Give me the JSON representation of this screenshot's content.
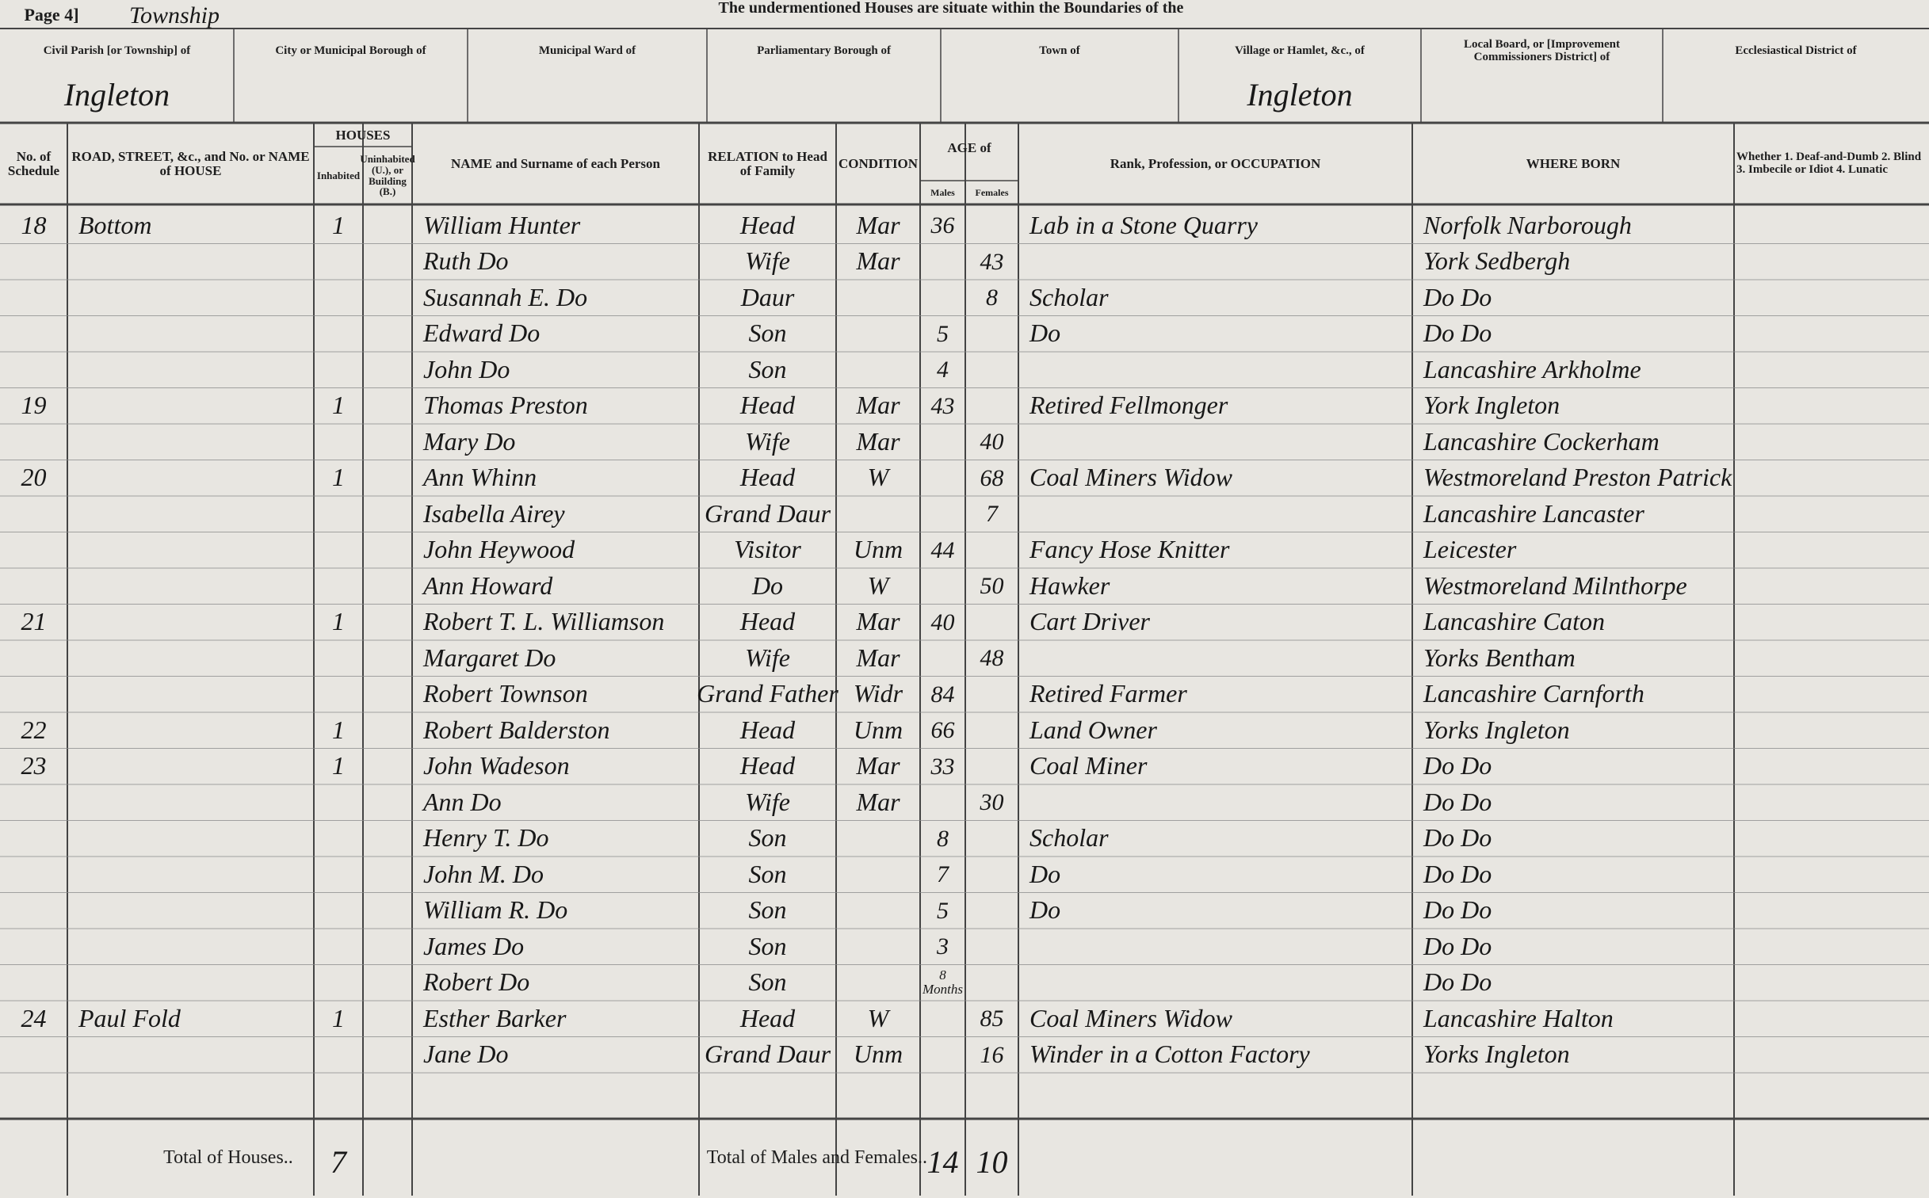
{
  "header": {
    "page": "Page 4]",
    "title": "The undermentioned Houses are situate within the Boundaries of the",
    "annotation": "Township",
    "boundaries": [
      {
        "label": "Civil Parish [or Township] of",
        "value": "Ingleton"
      },
      {
        "label": "City or Municipal Borough of"
      },
      {
        "label": "Municipal Ward of"
      },
      {
        "label": "Parliamentary Borough of"
      },
      {
        "label": "Town of"
      },
      {
        "label": "Village or Hamlet, &c., of",
        "value": "Ingleton"
      },
      {
        "label": "Local Board, or [Improvement Commissioners District] of"
      },
      {
        "label": "Ecclesiastical District of"
      }
    ]
  },
  "table": {
    "headers": {
      "schedule": "No. of Schedule",
      "address": "ROAD, STREET, &c., and No. or NAME of HOUSE",
      "houses": "HOUSES",
      "inhabited": "Inhabited",
      "uninhabited": "Uninhabited (U.), or Building (B.)",
      "name": "NAME and Surname of each Person",
      "relation": "RELATION to Head of Family",
      "condition": "CONDITION",
      "age": "AGE of",
      "males": "Males",
      "females": "Females",
      "occupation": "Rank, Profession, or OCCUPATION",
      "born": "WHERE BORN",
      "infirmity": "Whether 1. Deaf-and-Dumb 2. Blind 3. Imbecile or Idiot 4. Lunatic"
    },
    "rows": [
      {
        "schedule": "18",
        "address": "Bottom",
        "inhabited": "1",
        "name": "William Hunter",
        "relation": "Head",
        "condition": "Mar",
        "males": 36,
        "occupation": "Lab in a Stone Quarry",
        "born": "Norfolk Narborough"
      },
      {
        "name": "Ruth Do",
        "relation": "Wife",
        "condition": "Mar",
        "females": 43,
        "born": "York Sedbergh"
      },
      {
        "name": "Susannah E. Do",
        "relation": "Daur",
        "females": 8,
        "occupation": "Scholar",
        "born": "Do Do"
      },
      {
        "name": "Edward Do",
        "relation": "Son",
        "males": 5,
        "occupation": "Do",
        "born": "Do Do"
      },
      {
        "name": "John Do",
        "relation": "Son",
        "males": 4,
        "born": "Lancashire Arkholme"
      },
      {
        "schedule": "19",
        "inhabited": "1",
        "name": "Thomas Preston",
        "relation": "Head",
        "condition": "Mar",
        "males": 43,
        "occupation": "Retired Fellmonger",
        "born": "York Ingleton"
      },
      {
        "name": "Mary Do",
        "relation": "Wife",
        "condition": "Mar",
        "females": 40,
        "born": "Lancashire Cockerham"
      },
      {
        "schedule": "20",
        "inhabited": "1",
        "name": "Ann Whinn",
        "relation": "Head",
        "condition": "W",
        "females": 68,
        "occupation": "Coal Miners Widow",
        "born": "Westmoreland Preston Patrick"
      },
      {
        "name": "Isabella Airey",
        "relation": "Grand Daur",
        "females": 7,
        "born": "Lancashire Lancaster"
      },
      {
        "name": "John Heywood",
        "relation": "Visitor",
        "condition": "Unm",
        "males": 44,
        "occupation": "Fancy Hose Knitter",
        "born": "Leicester"
      },
      {
        "name": "Ann Howard",
        "relation": "Do",
        "condition": "W",
        "females": 50,
        "occupation": "Hawker",
        "born": "Westmoreland Milnthorpe"
      },
      {
        "schedule": "21",
        "inhabited": "1",
        "name": "Robert T. L. Williamson",
        "relation": "Head",
        "condition": "Mar",
        "males": 40,
        "occupation": "Cart Driver",
        "born": "Lancashire Caton"
      },
      {
        "name": "Margaret Do",
        "relation": "Wife",
        "condition": "Mar",
        "females": 48,
        "born": "Yorks Bentham"
      },
      {
        "name": "Robert Townson",
        "relation": "Grand Father",
        "condition": "Widr",
        "males": 84,
        "occupation": "Retired Farmer",
        "born": "Lancashire Carnforth"
      },
      {
        "schedule": "22",
        "inhabited": "1",
        "name": "Robert Balderston",
        "relation": "Head",
        "condition": "Unm",
        "males": 66,
        "occupation": "Land Owner",
        "born": "Yorks Ingleton"
      },
      {
        "schedule": "23",
        "inhabited": "1",
        "name": "John Wadeson",
        "relation": "Head",
        "condition": "Mar",
        "males": 33,
        "occupation": "Coal Miner",
        "born": "Do Do"
      },
      {
        "name": "Ann Do",
        "relation": "Wife",
        "condition": "Mar",
        "females": 30,
        "born": "Do Do"
      },
      {
        "name": "Henry T. Do",
        "relation": "Son",
        "males": 8,
        "occupation": "Scholar",
        "born": "Do Do"
      },
      {
        "name": "John M. Do",
        "relation": "Son",
        "males": 7,
        "occupation": "Do",
        "born": "Do Do"
      },
      {
        "name": "William R. Do",
        "relation": "Son",
        "males": 5,
        "occupation": "Do",
        "born": "Do Do"
      },
      {
        "name": "James Do",
        "relation": "Son",
        "males": 3,
        "born": "Do Do"
      },
      {
        "name": "Robert Do",
        "relation": "Son",
        "males": "8 Months",
        "born": "Do Do"
      },
      {
        "schedule": "24",
        "address": "Paul Fold",
        "inhabited": "1",
        "name": "Esther Barker",
        "relation": "Head",
        "condition": "W",
        "females": 85,
        "occupation": "Coal Miners Widow",
        "born": "Lancashire Halton"
      },
      {
        "name": "Jane Do",
        "relation": "Grand Daur",
        "condition": "Unm",
        "females": 16,
        "occupation": "Winder in a Cotton Factory",
        "born": "Yorks Ingleton"
      }
    ],
    "totals": {
      "houses_label": "Total of Houses..",
      "houses": "7",
      "persons_label": "Total of Males and Females..",
      "males": 14,
      "females": 10
    }
  }
}
